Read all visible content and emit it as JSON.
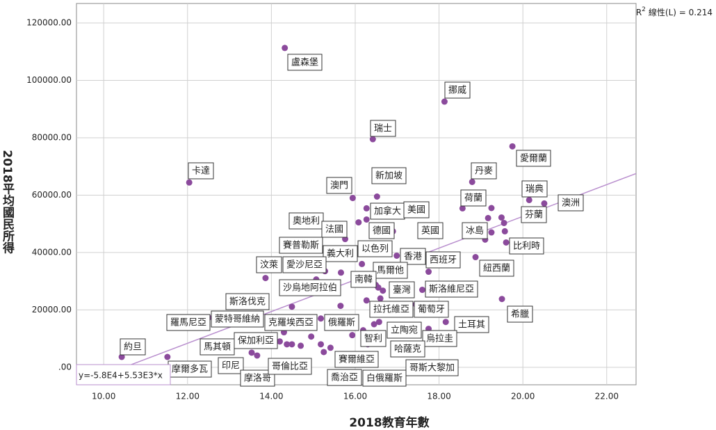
{
  "chart_data": {
    "type": "scatter",
    "x_label": "2018教育年數",
    "y_label": "2018平均國民所得",
    "r2_prefix": "R",
    "r2_sup": "2",
    "r2_text": "線性(L) = 0.214",
    "fit_label": "y=-5.8E4+5.53E3*x",
    "fit_intercept": -58000,
    "fit_slope": 5530,
    "fit_color": "#b98fce",
    "xlim": [
      9.35,
      22.7
    ],
    "ylim": [
      -6100,
      126800
    ],
    "xticks": [
      {
        "value": 10,
        "label": "10.00"
      },
      {
        "value": 12,
        "label": "12.00"
      },
      {
        "value": 14,
        "label": "14.00"
      },
      {
        "value": 16,
        "label": "16.00"
      },
      {
        "value": 18,
        "label": "18.00"
      },
      {
        "value": 20,
        "label": "20.00"
      },
      {
        "value": 22,
        "label": "22.00"
      }
    ],
    "yticks": [
      {
        "value": 0,
        "label": ".00"
      },
      {
        "value": 20000,
        "label": "20000.00"
      },
      {
        "value": 40000,
        "label": "40000.00"
      },
      {
        "value": 60000,
        "label": "60000.00"
      },
      {
        "value": 80000,
        "label": "80000.00"
      },
      {
        "value": 100000,
        "label": "100000.00"
      },
      {
        "value": 120000,
        "label": "120000.00"
      }
    ],
    "grid": true,
    "series": [
      {
        "color": "#8b4a9c",
        "x": [
          14.32,
          18.13,
          16.42,
          12.04,
          19.75,
          18.79,
          16.52,
          15.94,
          18.56,
          20.15,
          20.51,
          19.49,
          16.27,
          16.9,
          16.08,
          15.76,
          16.27,
          16.9,
          19.17,
          19.57,
          15.28,
          16.16,
          15.66,
          16.99,
          17.75,
          18.87,
          13.86,
          15.07,
          16.57,
          16.49,
          15.65,
          17.6,
          16.66,
          14.49,
          16.27,
          17.45,
          19.5,
          12.5,
          14.1,
          15.18,
          15.78,
          18.16,
          16.57,
          17.75,
          10.43,
          13.53,
          14.2,
          15.93,
          16.6,
          15.41,
          16.19,
          11.52,
          13.66,
          13.53,
          14.37,
          15.25,
          15.18,
          14.3,
          14.49,
          14.7,
          14.95,
          15.4,
          16.3,
          16.45,
          16.6,
          16.55,
          19.25,
          19.1,
          19.6,
          19.55,
          19.25
        ],
        "values": [
          111300,
          92600,
          79500,
          64400,
          77000,
          64600,
          59500,
          59000,
          55400,
          58300,
          57100,
          52200,
          55400,
          54200,
          50500,
          44700,
          51500,
          47400,
          52000,
          47400,
          33500,
          36000,
          33000,
          38900,
          33300,
          38400,
          31100,
          30600,
          35200,
          28700,
          21400,
          27000,
          26700,
          21100,
          23300,
          21900,
          23800,
          17300,
          17500,
          17000,
          16500,
          15800,
          15800,
          13400,
          3600,
          7500,
          9000,
          11200,
          11700,
          6800,
          12900,
          3600,
          4100,
          5100,
          8000,
          5300,
          8000,
          12200,
          8000,
          7500,
          10700,
          14000,
          8000,
          15000,
          24000,
          27800,
          47000,
          44500,
          43500,
          50300,
          55500
        ],
        "labels": [
          "盧森堡",
          "挪威",
          "瑞士",
          "卡達",
          "愛爾蘭",
          "丹麥",
          "新加坡",
          "澳門",
          "荷蘭",
          "瑞典",
          "澳洲",
          "芬蘭",
          "加拿大",
          "美國",
          "奧地利",
          "法國",
          "德國",
          "英國",
          "冰島",
          "比利時",
          "賽普勒斯",
          "以色列",
          "義大利",
          "香港",
          "西班牙",
          "紐西蘭",
          "汶萊",
          "愛沙尼亞",
          "馬爾他",
          "南韓",
          "沙烏地阿拉伯",
          "斯洛維尼亞",
          "臺灣",
          "斯洛伐克",
          "拉托維亞",
          "葡萄牙",
          "希臘",
          "羅馬尼亞",
          "蒙特哥維納",
          "克羅埃西亞",
          "俄羅斯",
          "土耳其",
          "立陶宛",
          "烏拉圭",
          "約旦",
          "馬其頓",
          "保加利亞",
          "智利",
          "哈薩克",
          "賽爾維亞",
          "哥斯大黎加",
          "摩爾多瓦",
          "印尼",
          "摩洛哥",
          "哥倫比亞",
          "喬治亞",
          "白俄羅斯",
          null,
          null,
          null,
          null,
          null,
          null,
          null,
          null,
          null,
          null,
          null,
          null,
          null,
          null
        ]
      }
    ]
  }
}
